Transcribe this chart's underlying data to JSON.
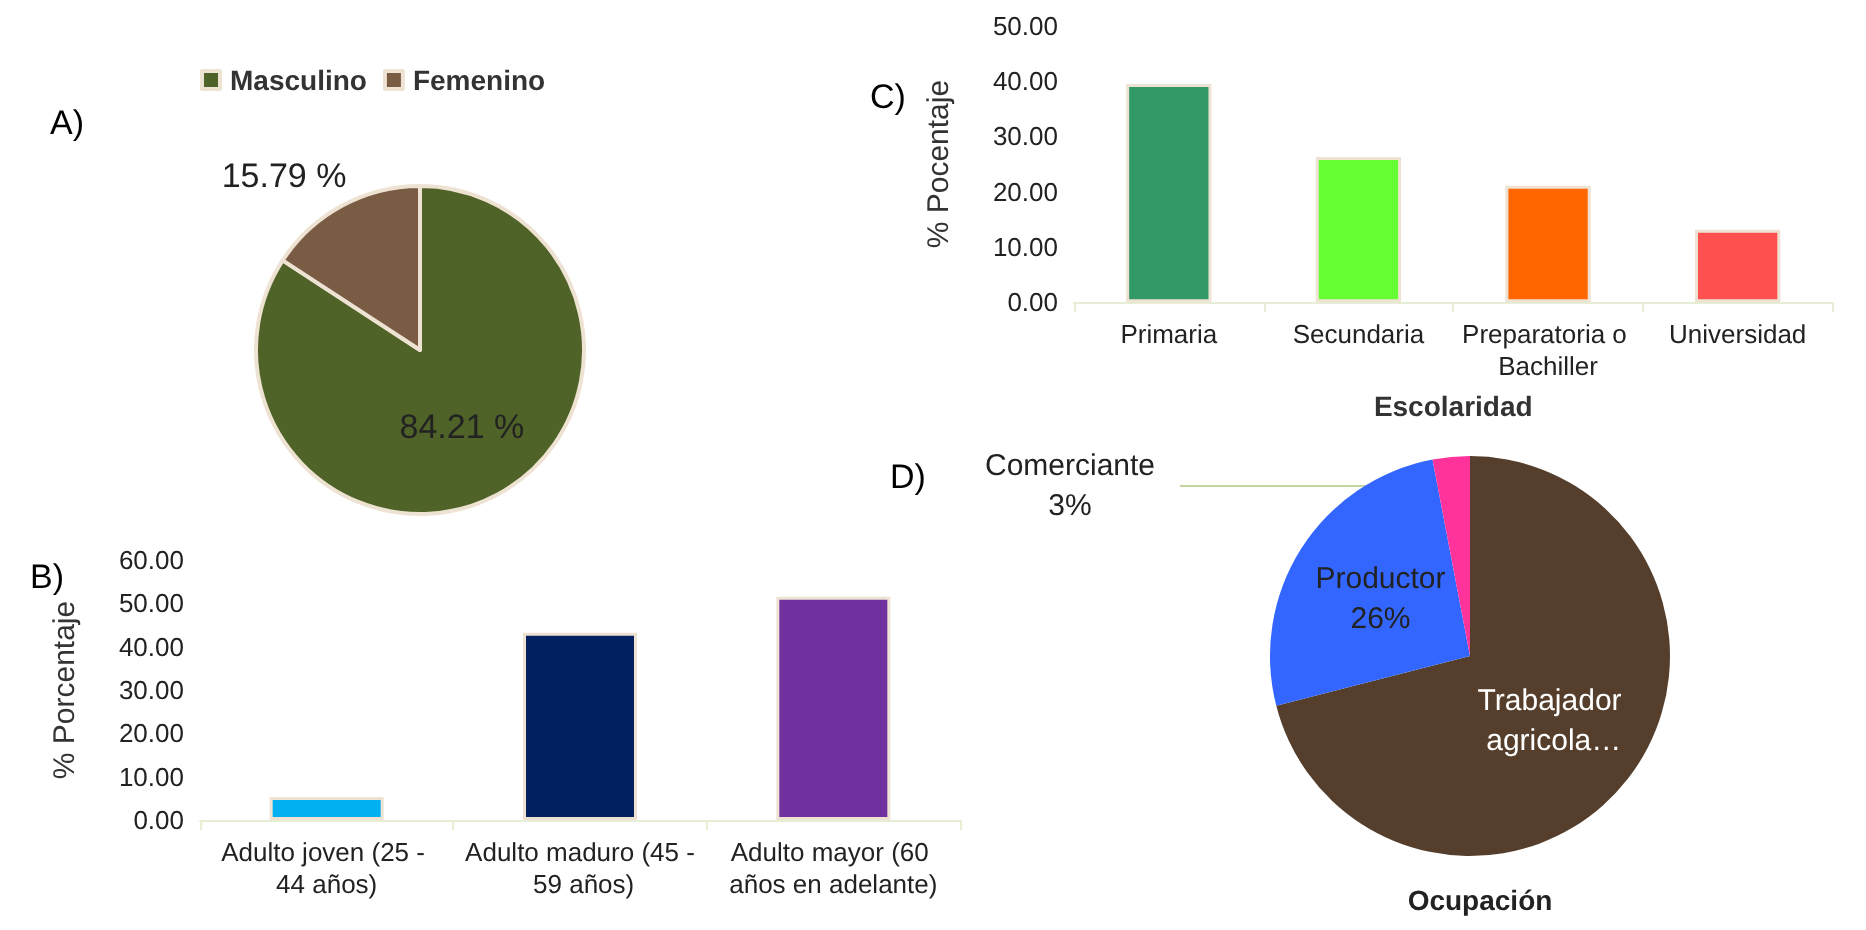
{
  "chart_data": [
    {
      "type": "pie",
      "title": "A)",
      "categories": [
        "Masculino",
        "Femenino"
      ],
      "values": [
        84.21,
        15.79
      ],
      "colors": [
        "#4f6228",
        "#7a5c45"
      ],
      "value_labels": [
        "84.21 %",
        "15.79 %"
      ],
      "legend": "top"
    },
    {
      "type": "bar",
      "title": "C)",
      "categories": [
        "Primaria",
        "Secundaria",
        "Preparatoria o Bachiller",
        "Universidad"
      ],
      "values": [
        39.5,
        26.3,
        21.1,
        13.1
      ],
      "colors": [
        "#339966",
        "#66ff33",
        "#ff6600",
        "#ff5050"
      ],
      "xlabel": "Escolaridad",
      "ylabel": "% Pocentaje",
      "ylim": [
        0,
        50
      ],
      "yticks": [
        {
          "value": 0,
          "label": "0.00"
        },
        {
          "value": 10,
          "label": "10.00"
        },
        {
          "value": 20,
          "label": "20.00"
        },
        {
          "value": 30,
          "label": "30.00"
        },
        {
          "value": 40,
          "label": "40.00"
        },
        {
          "value": 50,
          "label": "50.00"
        }
      ]
    },
    {
      "type": "bar",
      "title": "B)",
      "categories": [
        "Adulto joven (25 - 44 años)",
        "Adulto maduro (45 - 59 años)",
        "Adulto mayor (60 años en adelante)"
      ],
      "values": [
        5.3,
        43.2,
        51.5
      ],
      "colors": [
        "#00b0f0",
        "#002060",
        "#7030a0"
      ],
      "ylabel": "% Porcentaje",
      "ylim": [
        0,
        60
      ],
      "yticks": [
        {
          "value": 0,
          "label": "0.00"
        },
        {
          "value": 10,
          "label": "10.00"
        },
        {
          "value": 20,
          "label": "20.00"
        },
        {
          "value": 30,
          "label": "30.00"
        },
        {
          "value": 40,
          "label": "40.00"
        },
        {
          "value": 50,
          "label": "50.00"
        },
        {
          "value": 60,
          "label": "60.00"
        }
      ]
    },
    {
      "type": "pie",
      "title": "D)",
      "subtitle": "Ocupación",
      "categories": [
        "Trabajador agricola…",
        "Productor",
        "Comerciante"
      ],
      "values": [
        71,
        26,
        3
      ],
      "colors": [
        "#553f2c",
        "#3366ff",
        "#ff3399"
      ],
      "value_labels": [
        null,
        "26%",
        "3%"
      ]
    }
  ]
}
